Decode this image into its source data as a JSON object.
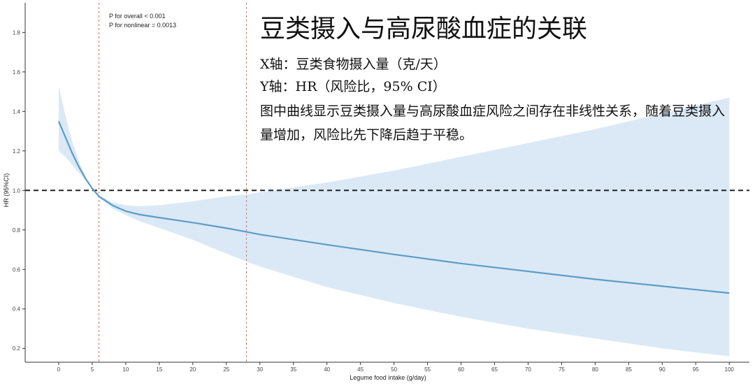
{
  "chart_data": {
    "type": "line",
    "xlabel": "Legume food intake (g/day)",
    "ylabel": "HR (95%CI)",
    "xlim": [
      -5,
      103
    ],
    "ylim": [
      0.13,
      1.95
    ],
    "x_ticks": [
      0,
      5,
      10,
      15,
      20,
      25,
      30,
      35,
      40,
      45,
      50,
      55,
      60,
      65,
      70,
      75,
      80,
      85,
      90,
      95,
      100
    ],
    "y_ticks": [
      0.2,
      0.4,
      0.6,
      0.8,
      1.0,
      1.2,
      1.4,
      1.6,
      1.8
    ],
    "annotations": [
      "P for overall < 0.001",
      "P for nonlinear = 0.0013"
    ],
    "reference_line_y": 1.0,
    "reference_lines_x": [
      6,
      28
    ],
    "colors": {
      "line": "#5b9ec6",
      "band": "#dbe9f6",
      "ref_h": "#222222",
      "ref_v": "#e06b6b"
    },
    "series": [
      {
        "x": [
          0,
          1,
          2,
          3,
          4,
          5,
          6,
          8,
          10,
          12,
          15,
          20,
          25,
          28,
          30,
          40,
          50,
          60,
          70,
          80,
          90,
          100
        ],
        "y": [
          1.35,
          1.27,
          1.19,
          1.12,
          1.06,
          1.01,
          0.97,
          0.925,
          0.895,
          0.878,
          0.862,
          0.837,
          0.809,
          0.79,
          0.777,
          0.725,
          0.676,
          0.63,
          0.59,
          0.55,
          0.515,
          0.48
        ],
        "lower": [
          1.2,
          1.17,
          1.13,
          1.09,
          1.05,
          1.005,
          0.965,
          0.91,
          0.875,
          0.845,
          0.81,
          0.75,
          0.68,
          0.64,
          0.615,
          0.51,
          0.43,
          0.36,
          0.3,
          0.25,
          0.2,
          0.16
        ],
        "upper": [
          1.53,
          1.38,
          1.25,
          1.15,
          1.07,
          1.015,
          0.975,
          0.94,
          0.925,
          0.92,
          0.925,
          0.945,
          0.97,
          0.98,
          0.99,
          1.04,
          1.1,
          1.17,
          1.24,
          1.31,
          1.39,
          1.47
        ]
      }
    ]
  },
  "overlay": {
    "title": "豆类摄入与高尿酸血症的关联",
    "x_axis_line": "X轴：豆类食物摄入量（克/天）",
    "y_axis_line": "Y轴：HR（风险比，95% CI）",
    "description": "图中曲线显示豆类摄入量与高尿酸血症风险之间存在非线性关系，随着豆类摄入量增加，风险比先下降后趋于平稳。"
  }
}
